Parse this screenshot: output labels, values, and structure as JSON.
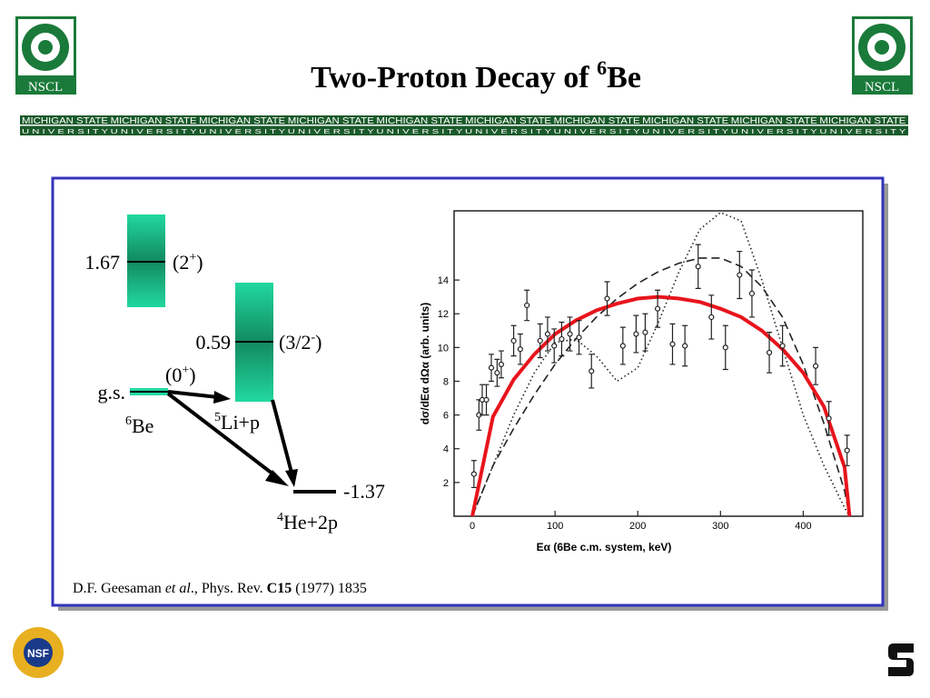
{
  "header": {
    "title": "Two-Proton Decay of ",
    "title_sup": "6",
    "title_end": "Be",
    "logo": "NSCL",
    "banner_top": "MICHIGAN STATE",
    "banner_bottom": "U N I V E R S I T Y"
  },
  "levels": {
    "upper": {
      "energy": 1.67,
      "spin": "(2",
      "spin_sup": "+",
      "spin_end": ")"
    },
    "middle": {
      "energy": 0.59,
      "spin": "(3/2",
      "spin_sup": "-",
      "spin_end": ")",
      "nucleus_sup": "5",
      "nucleus": "Li+p"
    },
    "ground": {
      "label": "g.s.",
      "spin": "(0",
      "spin_sup": "+",
      "spin_end": ")",
      "nucleus_sup": "6",
      "nucleus": "Be"
    },
    "lower": {
      "energy": -1.37,
      "nucleus_sup": "4",
      "nucleus": "He+2p"
    }
  },
  "citation": {
    "author": "D.F. Geesaman ",
    "etal": "et al",
    "journal": "., Phys. Rev. ",
    "volume": "C15",
    "rest": " (1977) 1835"
  },
  "plot": {
    "type": "scatter",
    "ylabel": "dσ/dEα dΩα (arb. units)",
    "xlabel": "Eα (6Be c.m. system, keV)",
    "xlim": [
      -22,
      472
    ],
    "ylim": [
      0,
      18.1
    ],
    "xticks": [
      0,
      100,
      200,
      300,
      400
    ],
    "yticks": [
      2,
      4,
      6,
      8,
      10,
      12,
      14
    ],
    "x": [
      2,
      8,
      12,
      17,
      23,
      30,
      35,
      50,
      58,
      66,
      82,
      91,
      99,
      108,
      118,
      129,
      144,
      163,
      182,
      198,
      209,
      224,
      242,
      257,
      273,
      289,
      306,
      323,
      338,
      359,
      375,
      415,
      431,
      453
    ],
    "values": [
      2.5,
      6.0,
      6.9,
      6.9,
      8.8,
      8.5,
      9.0,
      10.4,
      9.9,
      12.5,
      10.4,
      10.8,
      10.1,
      10.5,
      10.8,
      10.6,
      8.6,
      12.9,
      10.1,
      10.8,
      10.9,
      12.3,
      10.2,
      10.1,
      14.8,
      11.8,
      10.0,
      14.3,
      13.2,
      9.7,
      10.1,
      8.9,
      5.8,
      3.9
    ],
    "errors": [
      0.8,
      0.9,
      0.9,
      0.9,
      0.8,
      0.8,
      0.8,
      0.9,
      0.9,
      0.9,
      1.0,
      1.0,
      1.0,
      1.0,
      1.0,
      1.0,
      1.0,
      1.0,
      1.1,
      1.1,
      1.1,
      1.1,
      1.2,
      1.2,
      1.3,
      1.3,
      1.3,
      1.4,
      1.4,
      1.2,
      1.2,
      1.1,
      1.0,
      0.9
    ],
    "curve_x": [
      0,
      25,
      50,
      75,
      100,
      125,
      150,
      175,
      200,
      225,
      250,
      275,
      300,
      325,
      350,
      375,
      400,
      425,
      450,
      456
    ],
    "curves": [
      {
        "style": "dotted",
        "color": "#222222",
        "values": [
          0,
          3,
          6,
          8.5,
          10.3,
          10.5,
          9.5,
          8.0,
          8.8,
          11.5,
          14.5,
          17,
          18,
          17.5,
          14,
          10,
          6,
          3,
          0.5,
          0
        ]
      },
      {
        "style": "dashed",
        "color": "#222222",
        "values": [
          0,
          3,
          5.2,
          7.2,
          9,
          10.5,
          11.8,
          12.9,
          13.8,
          14.5,
          15,
          15.3,
          15.3,
          14.8,
          13.6,
          11.8,
          9,
          5.5,
          1.5,
          0
        ]
      },
      {
        "style": "solid",
        "color": "#e8141c",
        "values": [
          0,
          5.9,
          8.1,
          9.6,
          10.8,
          11.6,
          12.2,
          12.6,
          12.9,
          13.0,
          12.9,
          12.7,
          12.3,
          11.8,
          11.0,
          9.9,
          8.5,
          6.5,
          2.9,
          0
        ]
      }
    ]
  },
  "footer": {
    "nsf": "NSF"
  }
}
